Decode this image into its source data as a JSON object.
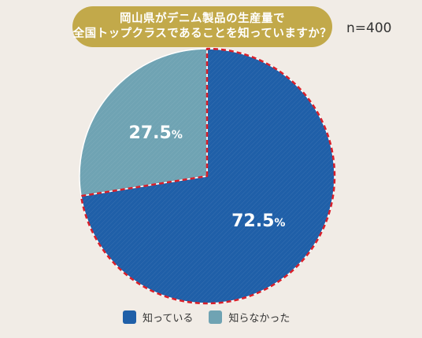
{
  "header": {
    "title_line1": "岡山県がデニム製品の生産量で",
    "title_line2": "全国トップクラスであることを知っていますか？",
    "sample_size": "n=400"
  },
  "legend": {
    "items": [
      {
        "label": "知っている",
        "color": "#1f5fa8"
      },
      {
        "label": "知らなかった",
        "color": "#6fa3b3"
      }
    ]
  },
  "chart_data": {
    "type": "pie",
    "title": "岡山県がデニム製品の生産量で全国トップクラスであることを知っていますか？",
    "sample_size": "n=400",
    "slices": [
      {
        "label": "知っている",
        "value": 72.5,
        "display": "72.5",
        "unit": "%",
        "color": "#1f5fa8"
      },
      {
        "label": "知らなかった",
        "value": 27.5,
        "display": "27.5",
        "unit": "%",
        "color": "#6fa3b3"
      }
    ],
    "highlight_border_color": "#d9202a",
    "legend_position": "bottom"
  }
}
